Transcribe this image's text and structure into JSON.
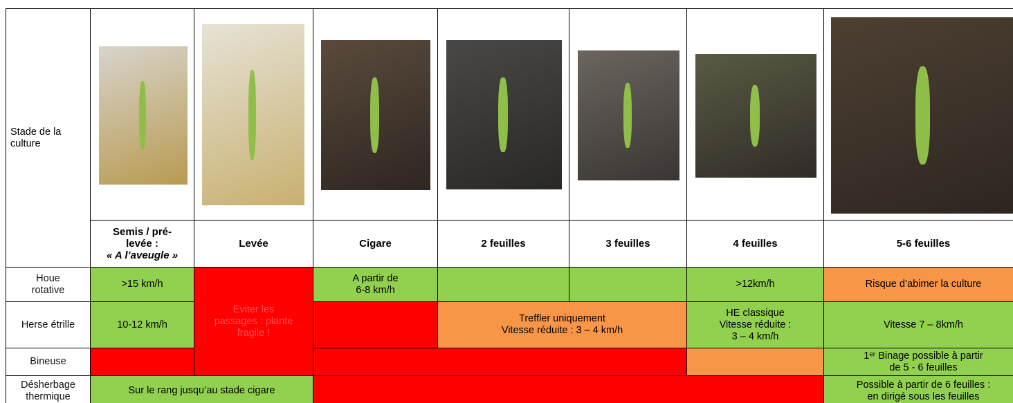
{
  "table": {
    "stage_label": "Stade de la culture",
    "stages": [
      {
        "title": [
          "Semis / pré-",
          "levée :"
        ],
        "subtitle": "« A l’aveugle »"
      },
      {
        "title": [
          "Levée"
        ]
      },
      {
        "title": [
          "Cigare"
        ]
      },
      {
        "title": [
          "2 feuilles"
        ]
      },
      {
        "title": [
          "3 feuilles"
        ]
      },
      {
        "title": [
          "4 feuilles"
        ]
      },
      {
        "title": [
          "5-6 feuilles"
        ]
      }
    ],
    "rows": [
      {
        "label": [
          "Houe",
          "rotative"
        ],
        "cells": [
          {
            "lines": [
              ">15 km/h"
            ],
            "color": "#92d050"
          },
          {
            "lines": [
              "Eviter les",
              "passages : plante",
              "fragile !"
            ],
            "color": "#ff0000"
          },
          {
            "lines": [
              "A partir de",
              "6-8 km/h"
            ],
            "color": "#92d050"
          },
          {
            "color": "#92d050"
          },
          {
            "color": "#92d050"
          },
          {
            "lines": [
              ">12km/h"
            ],
            "color": "#92d050"
          },
          {
            "lines": [
              "Risque d’abimer la culture"
            ],
            "color": "#f79646"
          }
        ]
      },
      {
        "label": [
          "Herse étrille"
        ],
        "cells": [
          {
            "lines": [
              "10-12 km/h"
            ],
            "color": "#92d050"
          },
          {
            "color": "#ff0000"
          },
          {
            "lines": [
              "Treffler uniquement",
              "Vitesse réduite : 3 – 4 km/h"
            ],
            "color": "#f79646"
          },
          {
            "lines": [
              "HE classique",
              "Vitesse réduite :",
              "3 – 4 km/h"
            ],
            "color": "#92d050"
          },
          {
            "lines": [
              "Vitesse 7 – 8km/h"
            ],
            "color": "#92d050"
          }
        ]
      },
      {
        "label": [
          "Bineuse"
        ],
        "cells": [
          {
            "color": "#ff0000"
          },
          {
            "color": "#ff0000"
          },
          {
            "color": "#f79646"
          },
          {
            "lines": [
              "1ᵉʳ Binage possible à partir",
              "de 5 - 6 feuilles"
            ],
            "color": "#92d050"
          }
        ]
      },
      {
        "label": [
          "Désherbage",
          "thermique"
        ],
        "cells": [
          {
            "lines": [
              "Sur le rang jusqu’au stade cigare"
            ],
            "color": "#92d050"
          },
          {
            "color": "#ff0000"
          },
          {
            "lines": [
              "Possible à partir de 6 feuilles :",
              "en dirigé sous les feuilles"
            ],
            "color": "#92d050"
          }
        ]
      }
    ]
  }
}
